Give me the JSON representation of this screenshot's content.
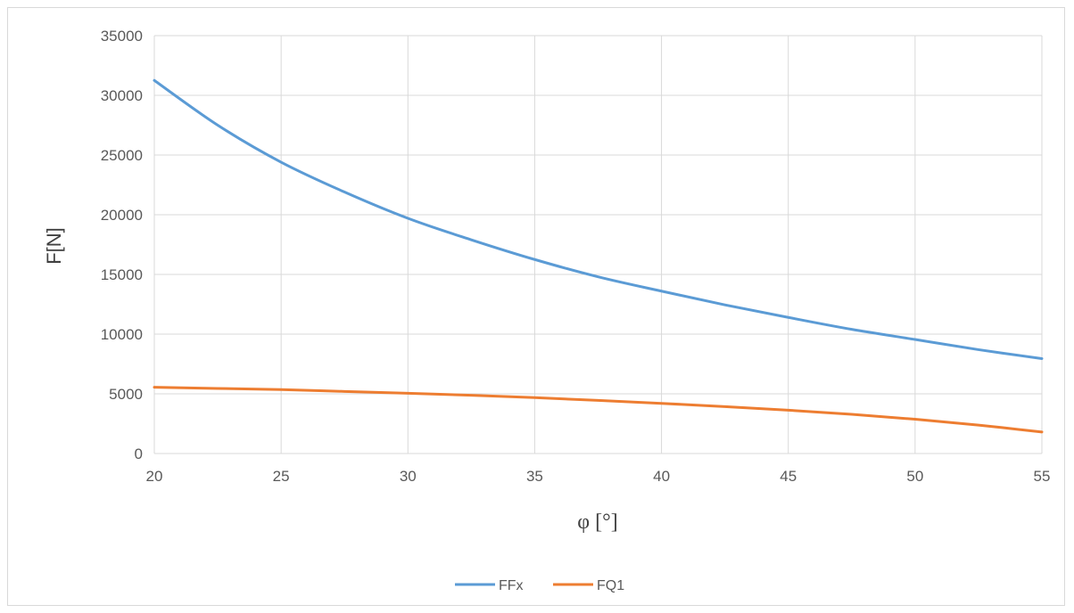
{
  "chart_data": {
    "type": "line",
    "xlabel": "φ [°]",
    "ylabel": "F[N]",
    "xlim": [
      20,
      55
    ],
    "ylim": [
      0,
      35000
    ],
    "x_ticks": [
      20,
      25,
      30,
      35,
      40,
      45,
      50,
      55
    ],
    "y_ticks": [
      0,
      5000,
      10000,
      15000,
      20000,
      25000,
      30000,
      35000
    ],
    "grid": true,
    "legend_position": "bottom",
    "x": [
      20,
      22.5,
      25,
      27.5,
      30,
      32.5,
      35,
      37.5,
      40,
      42.5,
      45,
      47.5,
      50,
      52.5,
      55
    ],
    "series": [
      {
        "name": "FFx",
        "color": "#5b9bd5",
        "values": [
          31250,
          27500,
          24400,
          21900,
          19700,
          17900,
          16250,
          14800,
          13600,
          12450,
          11400,
          10400,
          9550,
          8700,
          7950
        ]
      },
      {
        "name": "FQ1",
        "color": "#ed7d31",
        "values": [
          5550,
          5450,
          5350,
          5200,
          5050,
          4880,
          4680,
          4450,
          4200,
          3930,
          3630,
          3280,
          2870,
          2380,
          1800
        ]
      }
    ]
  }
}
